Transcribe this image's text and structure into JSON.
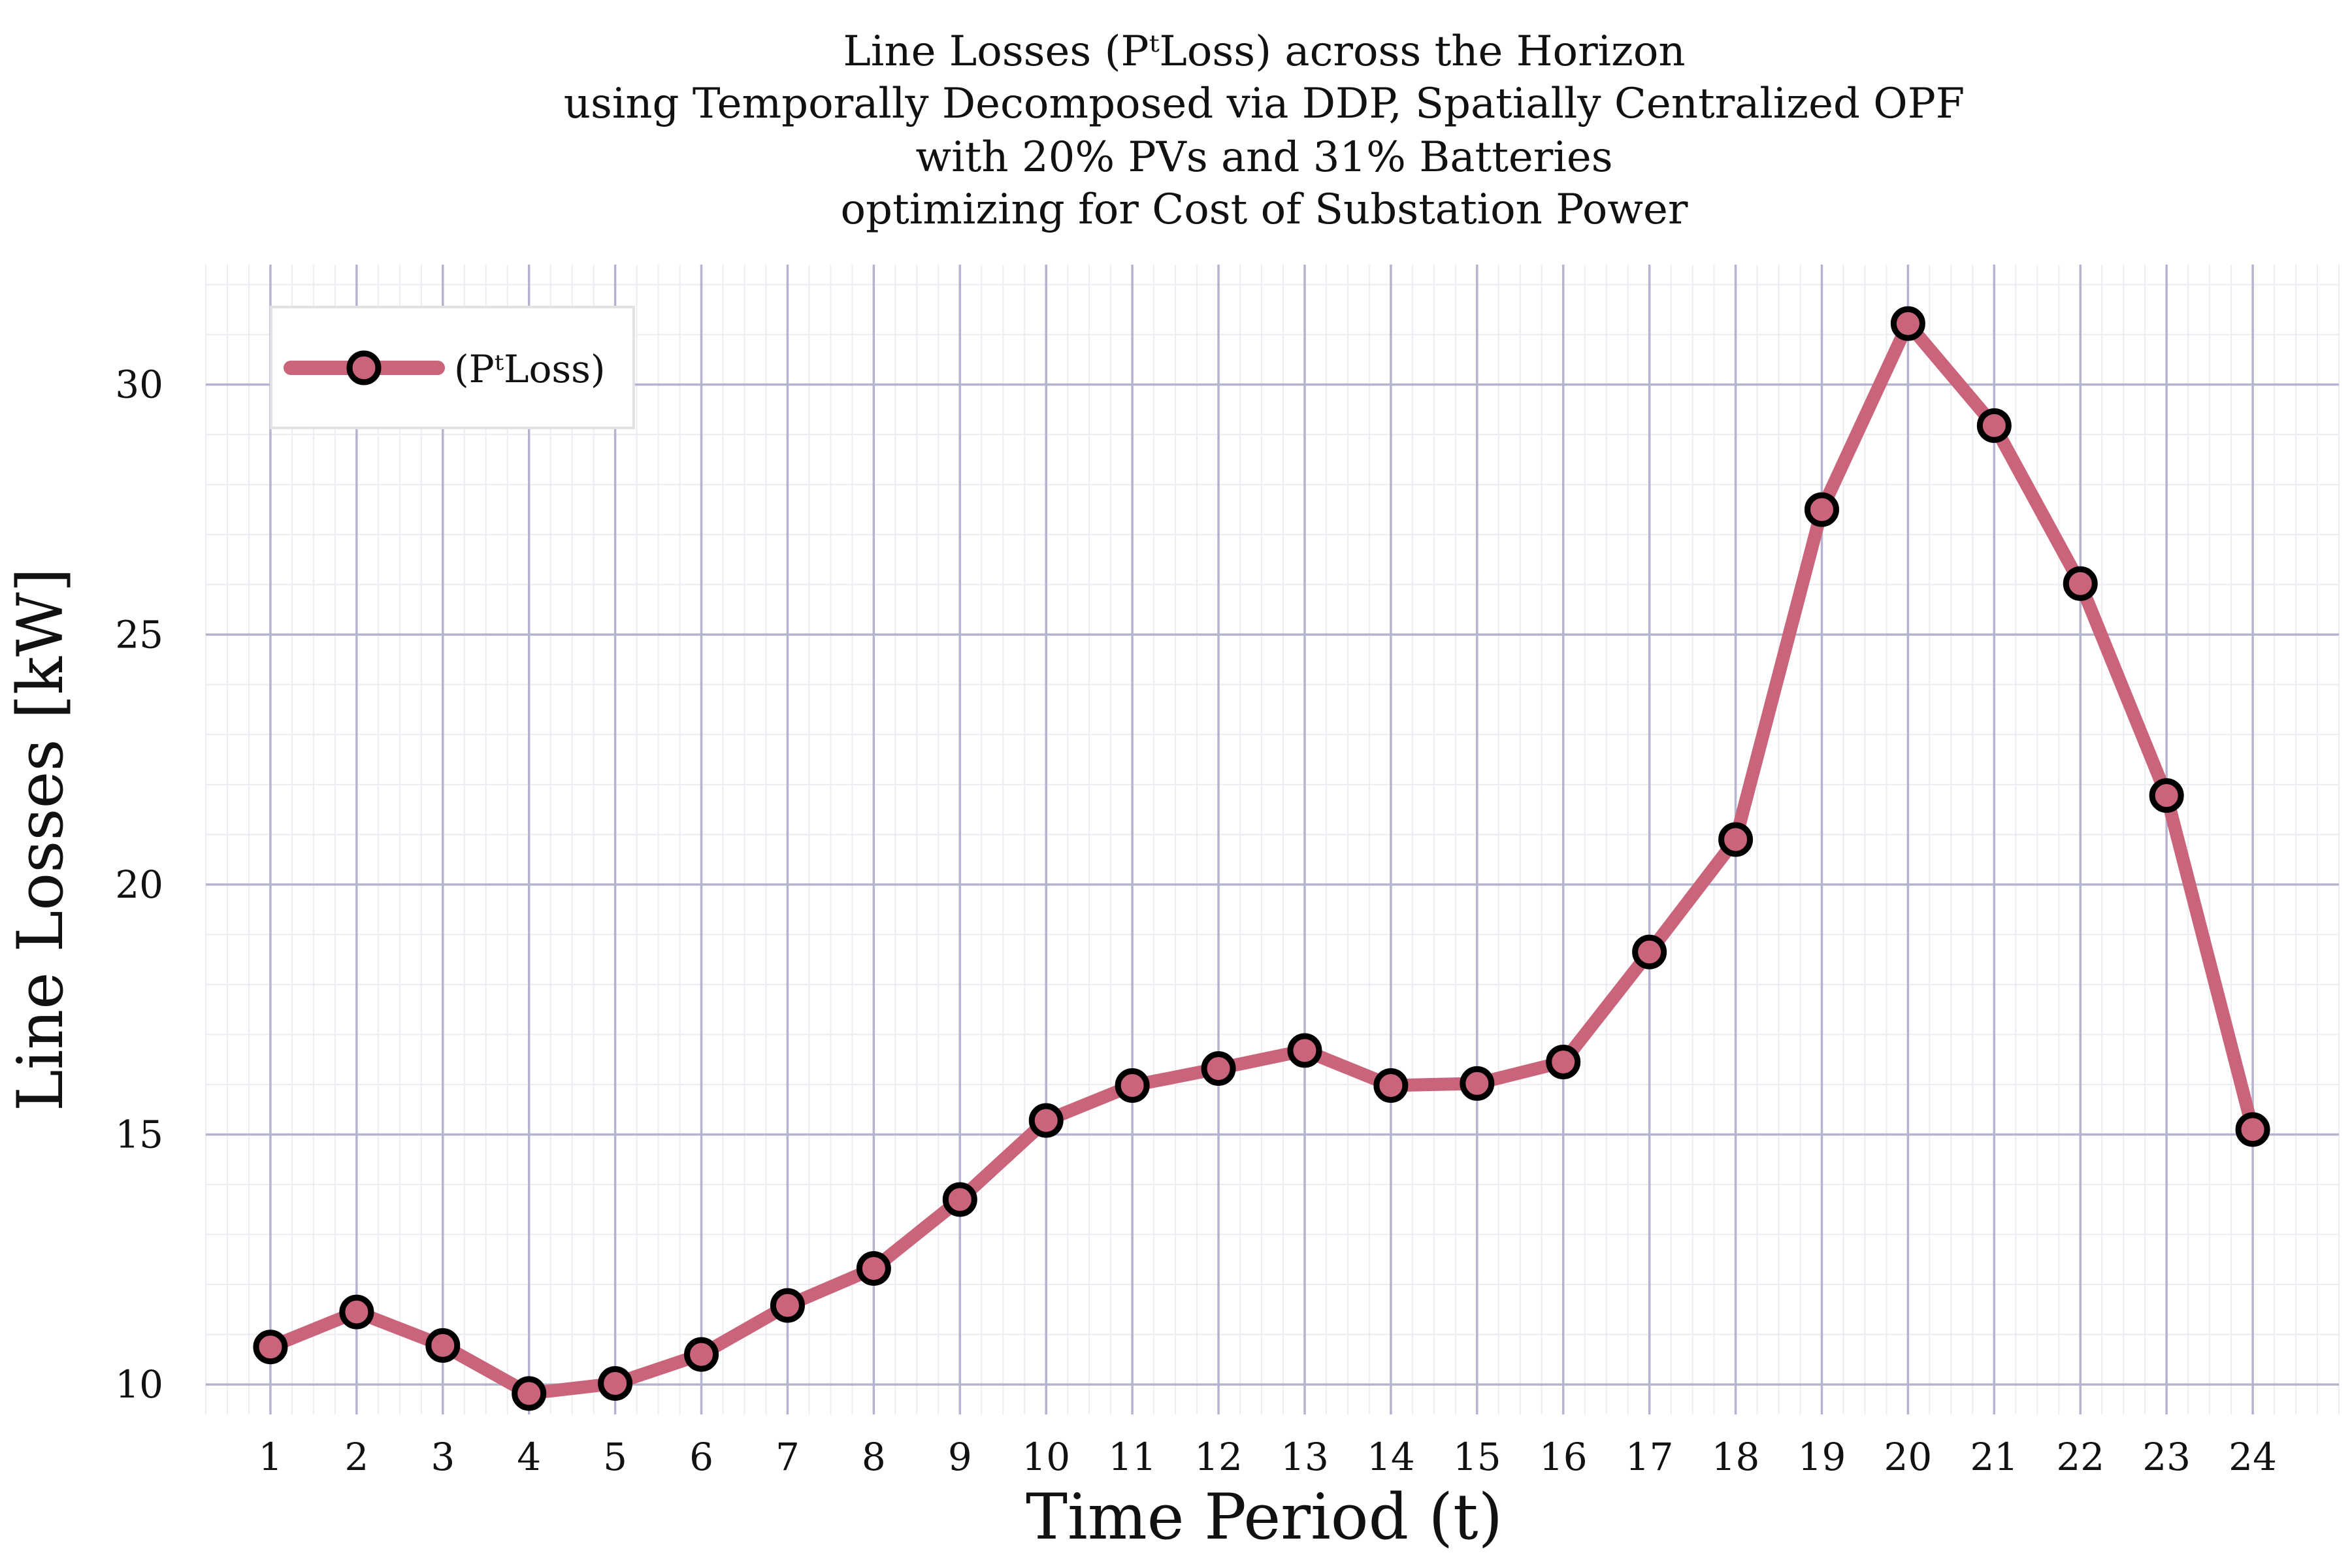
{
  "chart_data": {
    "type": "line",
    "title": [
      "Line Losses (PᵗLoss) across the Horizon",
      "using Temporally Decomposed via DDP, Spatially Centralized OPF",
      "with 20% PVs and 31% Batteries",
      "optimizing for Cost of Substation Power"
    ],
    "xlabel": "Time Period (t)",
    "ylabel": "Line Losses [kW]",
    "x": [
      1,
      2,
      3,
      4,
      5,
      6,
      7,
      8,
      9,
      10,
      11,
      12,
      13,
      14,
      15,
      16,
      17,
      18,
      19,
      20,
      21,
      22,
      23,
      24
    ],
    "series": [
      {
        "name": "(PᵗLoss)",
        "values": [
          10.75,
          11.45,
          10.78,
          9.82,
          10.02,
          10.6,
          11.58,
          12.32,
          13.7,
          15.28,
          15.98,
          16.32,
          16.68,
          15.98,
          16.02,
          16.45,
          18.65,
          20.9,
          27.5,
          31.22,
          29.18,
          26.02,
          21.78,
          15.1
        ],
        "color": "#c9647a"
      }
    ],
    "xticks": [
      "1",
      "2",
      "3",
      "4",
      "5",
      "6",
      "7",
      "8",
      "9",
      "10",
      "11",
      "12",
      "13",
      "14",
      "15",
      "16",
      "17",
      "18",
      "19",
      "20",
      "21",
      "22",
      "23",
      "24"
    ],
    "yticks": [
      "10",
      "15",
      "20",
      "25",
      "30"
    ],
    "xlim": [
      0.25,
      25.0
    ],
    "ylim": [
      9.4,
      32.4
    ],
    "grid": true,
    "legend_position": "top-left",
    "colors": {
      "line": "#c9647a",
      "marker_edge": "#000000",
      "major_grid": "#b4b4cf",
      "minor_grid": "#ececf2"
    }
  }
}
